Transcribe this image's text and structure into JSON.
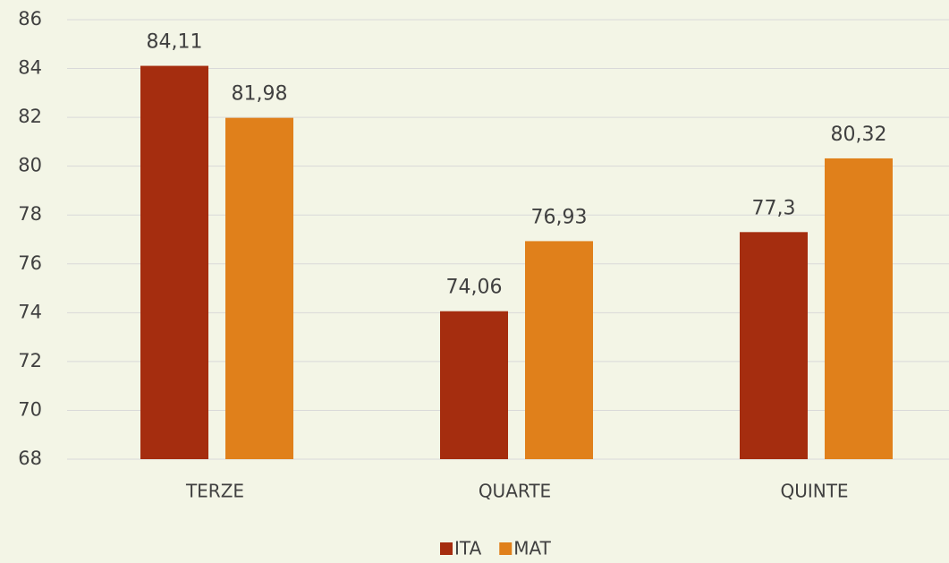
{
  "chart_data": {
    "type": "bar",
    "categories": [
      "TERZE",
      "QUARTE",
      "QUINTE"
    ],
    "series": [
      {
        "name": "ITA",
        "color": "#a52d0f",
        "values": [
          84.11,
          74.06,
          77.3
        ],
        "value_labels": [
          "84,11",
          "74,06",
          "77,3"
        ]
      },
      {
        "name": "MAT",
        "color": "#e0801b",
        "values": [
          81.98,
          76.93,
          80.32
        ],
        "value_labels": [
          "81,98",
          "76,93",
          "80,32"
        ]
      }
    ],
    "ylim": [
      68,
      86
    ],
    "yticks": [
      68,
      70,
      72,
      74,
      76,
      78,
      80,
      82,
      84,
      86
    ],
    "grid": true,
    "legend": "bottom"
  }
}
